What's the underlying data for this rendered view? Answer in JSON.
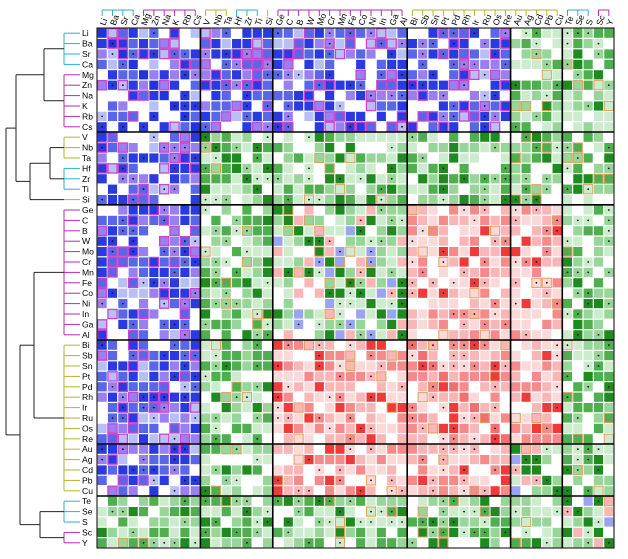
{
  "chart_data": {
    "type": "heatmap",
    "title": "",
    "xlabel": "",
    "ylabel": "",
    "elements": [
      "Li",
      "Ba",
      "Sr",
      "Ca",
      "Mg",
      "Zn",
      "Na",
      "K",
      "Rb",
      "Cs",
      "V",
      "Nb",
      "Ta",
      "Hf",
      "Zr",
      "Ti",
      "Si",
      "Ge",
      "C",
      "B",
      "W",
      "Mo",
      "Cr",
      "Mn",
      "Fe",
      "Co",
      "Ni",
      "In",
      "Ga",
      "Al",
      "Bi",
      "Sb",
      "Sn",
      "Pt",
      "Pd",
      "Rh",
      "Ir",
      "Ru",
      "Os",
      "Re",
      "Au",
      "Ag",
      "Cd",
      "Pb",
      "Cu",
      "Te",
      "Se",
      "S",
      "Sc",
      "Y"
    ],
    "group_boundaries": [
      10,
      17,
      30,
      40,
      45
    ],
    "row_clusters": [
      {
        "members": [
          "Li",
          "Ba",
          "Sr",
          "Ca"
        ],
        "color": "#29b3c4"
      },
      {
        "members": [
          "Mg",
          "Zn",
          "Na",
          "K",
          "Rb",
          "Cs"
        ],
        "color": "#b62ab6"
      },
      {
        "members": [
          "V",
          "Nb",
          "Ta"
        ],
        "color": "#b5b52a"
      },
      {
        "members": [
          "Hf",
          "Zr",
          "Ti"
        ],
        "color": "#29b3c4"
      },
      {
        "members": [
          "Si"
        ],
        "color": "#b5b52a"
      },
      {
        "members": [
          "Ge",
          "C",
          "B",
          "W",
          "Mo",
          "Cr",
          "Mn",
          "Fe",
          "Co",
          "Ni",
          "In",
          "Ga",
          "Al"
        ],
        "color": "#b62ab6"
      },
      {
        "members": [
          "Bi",
          "Sb",
          "Sn",
          "Pt",
          "Pd",
          "Rh",
          "Ir",
          "Ru",
          "Os",
          "Re",
          "Au",
          "Ag",
          "Cd",
          "Pb",
          "Cu"
        ],
        "color": "#b5b52a"
      },
      {
        "members": [
          "Te",
          "Se",
          "S"
        ],
        "color": "#29b3c4"
      },
      {
        "members": [
          "Sc",
          "Y"
        ],
        "color": "#b62ab6"
      }
    ],
    "value_range": [
      -1,
      1
    ],
    "colors": {
      "strong_blue": "#2233dd",
      "strong_green": "#1f8a1f",
      "strong_red": "#f03030",
      "violet_border": "#cc44cc",
      "orange_border": "#e0a060",
      "dendrogram": "#222222"
    },
    "legend": "none",
    "grid": true
  }
}
